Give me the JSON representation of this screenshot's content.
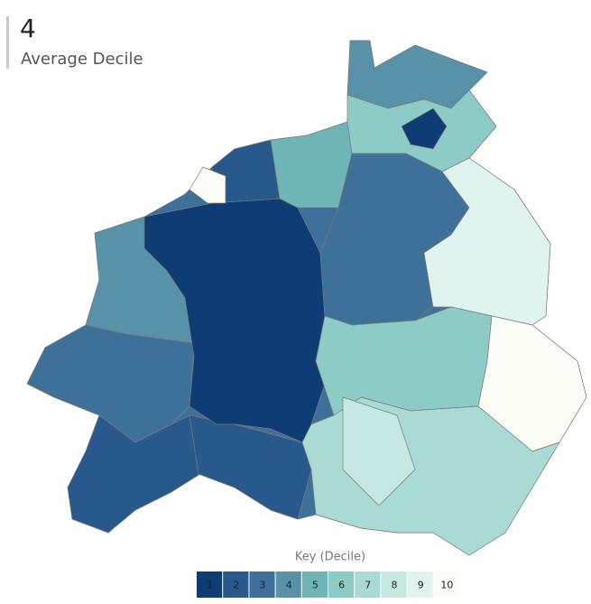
{
  "header": {
    "value": "4",
    "label": "Average Decile"
  },
  "legend": {
    "title": "Key (Decile)",
    "items": [
      {
        "label": "1",
        "color": "#0e3c74"
      },
      {
        "label": "2",
        "color": "#27598c"
      },
      {
        "label": "3",
        "color": "#3e7199"
      },
      {
        "label": "4",
        "color": "#5892a8"
      },
      {
        "label": "5",
        "color": "#6fb5b5"
      },
      {
        "label": "6",
        "color": "#8dcbc6"
      },
      {
        "label": "7",
        "color": "#a9dbd4"
      },
      {
        "label": "8",
        "color": "#c6e8e2"
      },
      {
        "label": "9",
        "color": "#e1f3ef"
      },
      {
        "label": "10",
        "color": "#fbfcf6"
      }
    ]
  }
}
